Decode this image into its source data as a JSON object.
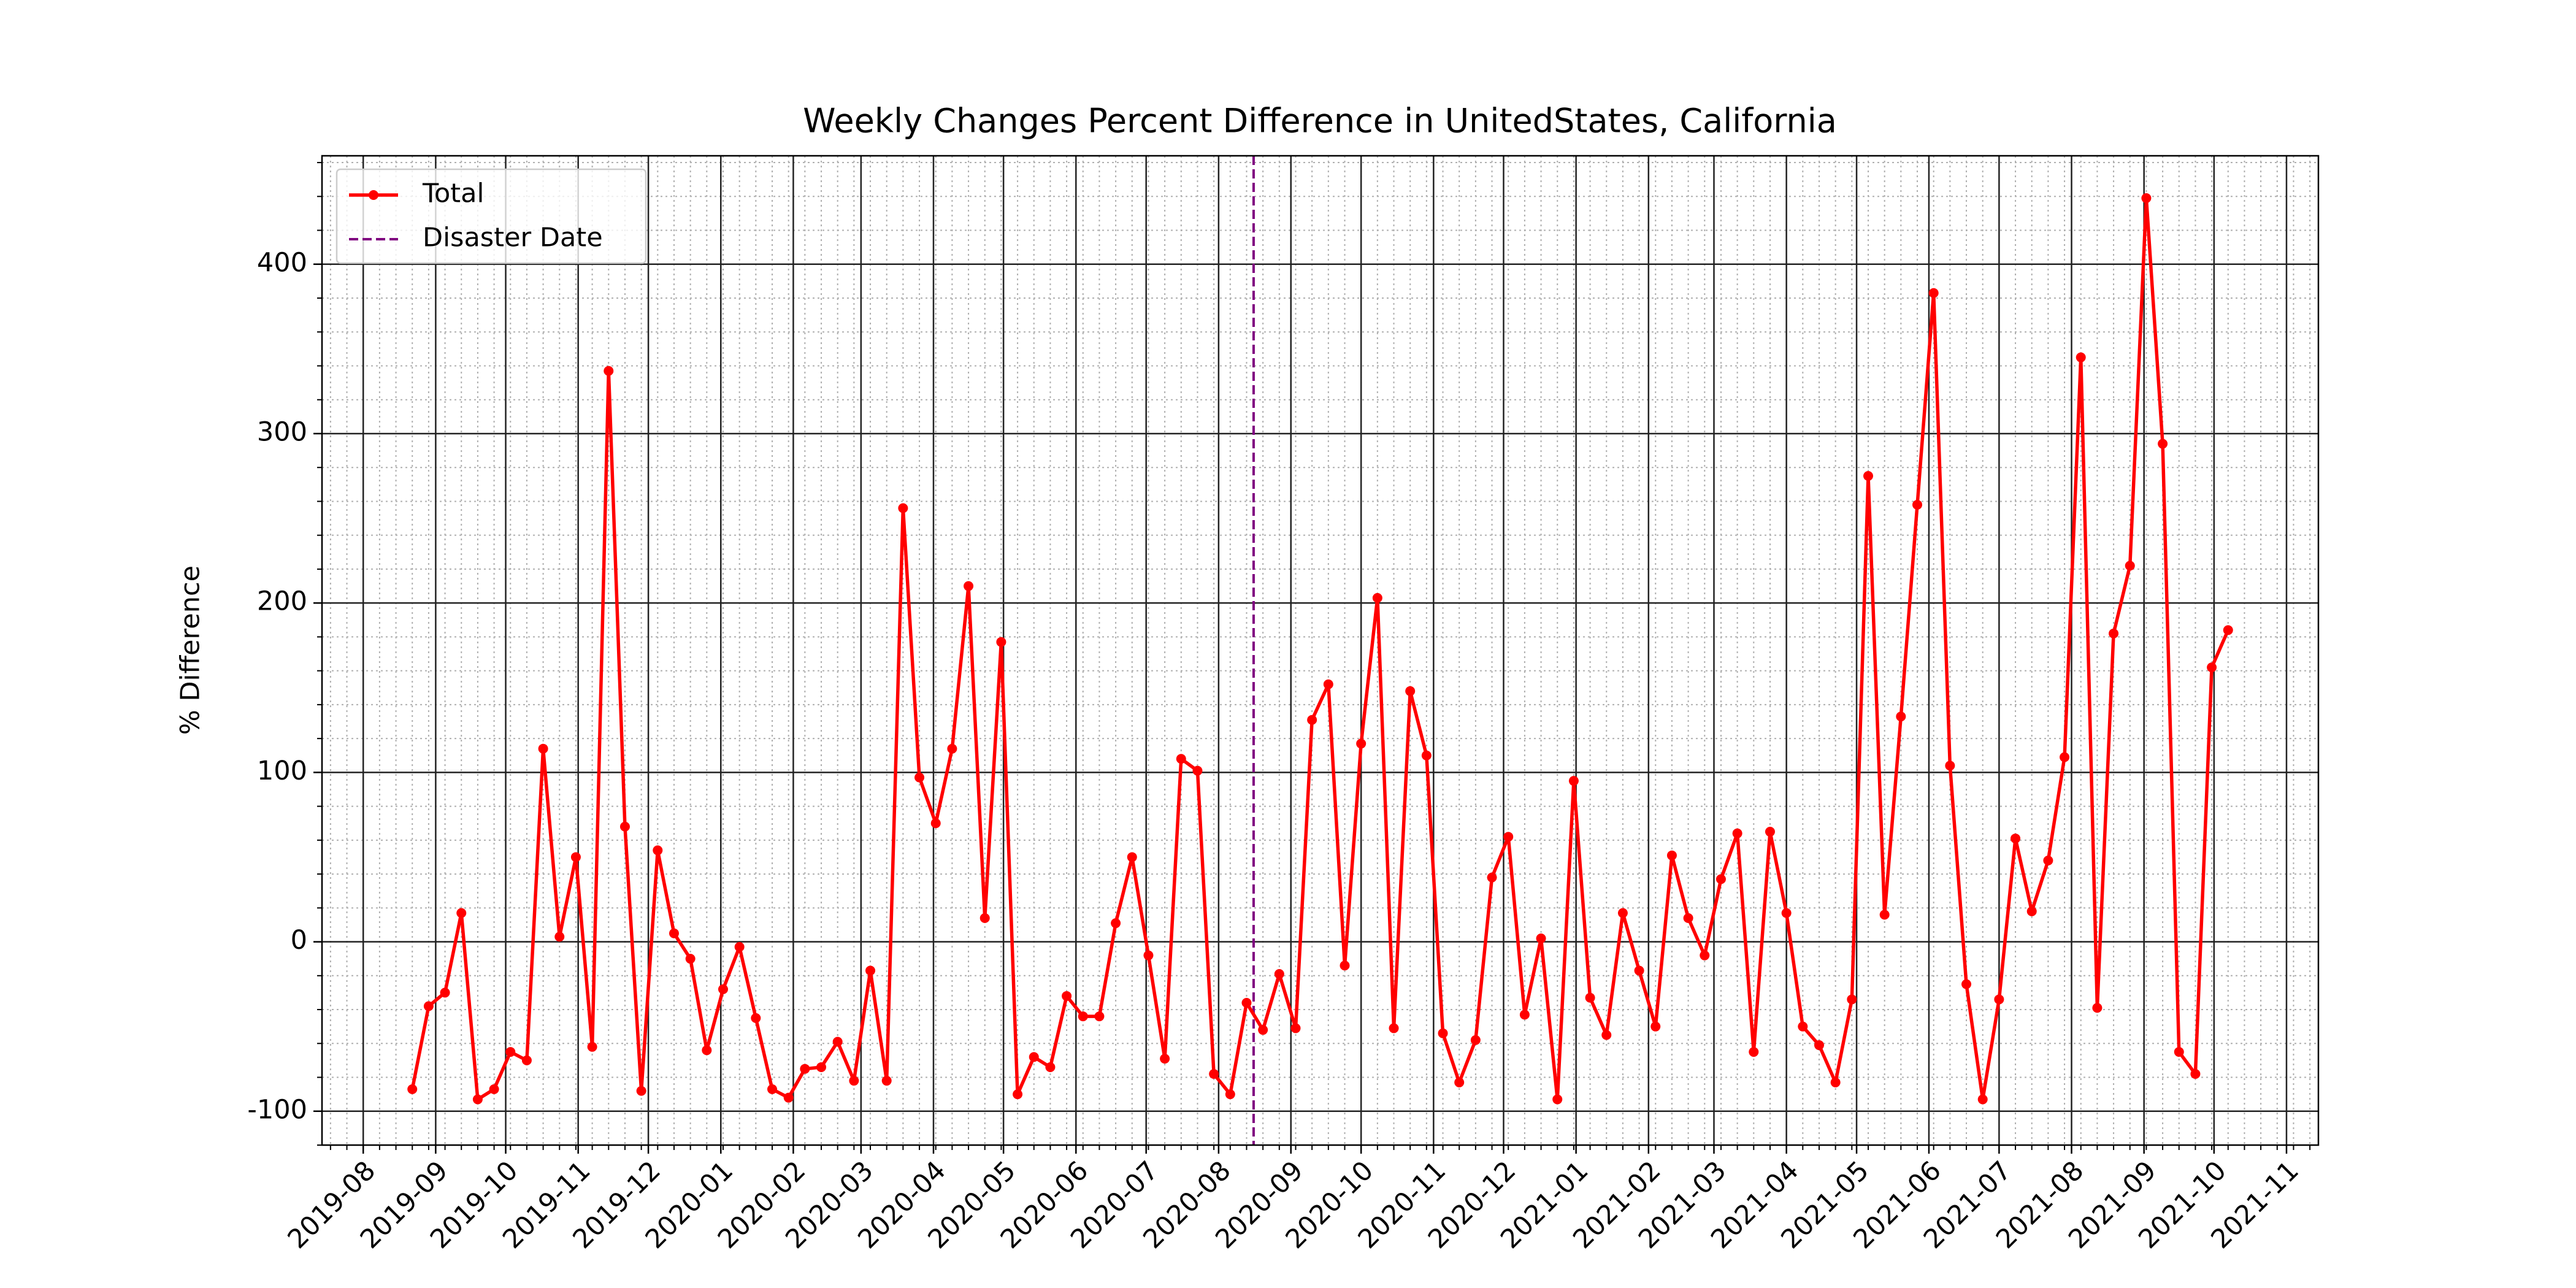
{
  "chart_data": {
    "type": "line",
    "title": "Weekly Changes Percent Difference in UnitedStates, California",
    "y_label": "% Difference",
    "categories": [
      null,
      null,
      null,
      null,
      null,
      null,
      null,
      null,
      null,
      null,
      null,
      null,
      null,
      null,
      null,
      null,
      null,
      null,
      null,
      null,
      null,
      null,
      null,
      null,
      null,
      null,
      null,
      null,
      null,
      null,
      null,
      null,
      null,
      null,
      null,
      null,
      null,
      null,
      null,
      null,
      null,
      null,
      null,
      null,
      null,
      null,
      null,
      null,
      null,
      null,
      null,
      null,
      null,
      null,
      null,
      null,
      null,
      null,
      null,
      null,
      null,
      null,
      null,
      null,
      null,
      null,
      null,
      null,
      null,
      null,
      null,
      null,
      null,
      null,
      null,
      null,
      null,
      null,
      null,
      null,
      null,
      null,
      null,
      null,
      null,
      null,
      null,
      null,
      null,
      null,
      null,
      null,
      null,
      null,
      null,
      null,
      null,
      null,
      null,
      null,
      null,
      null,
      null,
      null,
      null,
      null,
      null,
      null,
      null,
      null,
      null,
      null
    ],
    "series": [
      {
        "name": "Total",
        "color": "#ff0000",
        "values": [
          -87,
          -38,
          -30,
          17,
          -93,
          -87,
          -65,
          -70,
          114,
          3,
          50,
          -62,
          337,
          68,
          -88,
          54,
          5,
          -10,
          -64,
          -28,
          -3,
          -45,
          -87,
          -92,
          -75,
          -74,
          -59,
          -82,
          -17,
          -82,
          256,
          97,
          70,
          114,
          210,
          14,
          177,
          -90,
          -68,
          -74,
          -32,
          -44,
          -44,
          11,
          50,
          -8,
          -69,
          108,
          101,
          -78,
          -90,
          -36,
          -52,
          -19,
          -51,
          131,
          152,
          -14,
          117,
          203,
          -51,
          148,
          110,
          -54,
          -83,
          -58,
          38,
          62,
          -43,
          2,
          -93,
          95,
          -33,
          -55,
          17,
          -17,
          -50,
          51,
          14,
          -8,
          37,
          64,
          -65,
          65,
          17,
          -50,
          -61,
          -83,
          -34,
          275,
          16,
          133,
          258,
          383,
          104,
          -25,
          -93,
          -34,
          61,
          18,
          48,
          109,
          345,
          -39,
          182,
          222,
          439,
          294,
          -65,
          -78,
          162,
          184
        ]
      }
    ],
    "vline": {
      "label": "Disaster Date",
      "x": 51.43,
      "color": "#800080"
    },
    "xlim": [
      -5.52,
      116.52
    ],
    "xticks": [
      {
        "value": -3,
        "label": "2019-08"
      },
      {
        "value": 1.43,
        "label": "2019-09"
      },
      {
        "value": 5.71,
        "label": "2019-10"
      },
      {
        "value": 10.14,
        "label": "2019-11"
      },
      {
        "value": 14.43,
        "label": "2019-12"
      },
      {
        "value": 18.86,
        "label": "2020-01"
      },
      {
        "value": 23.29,
        "label": "2020-02"
      },
      {
        "value": 27.43,
        "label": "2020-03"
      },
      {
        "value": 31.86,
        "label": "2020-04"
      },
      {
        "value": 36.14,
        "label": "2020-05"
      },
      {
        "value": 40.57,
        "label": "2020-06"
      },
      {
        "value": 44.86,
        "label": "2020-07"
      },
      {
        "value": 49.29,
        "label": "2020-08"
      },
      {
        "value": 53.71,
        "label": "2020-09"
      },
      {
        "value": 58,
        "label": "2020-10"
      },
      {
        "value": 62.43,
        "label": "2020-11"
      },
      {
        "value": 66.71,
        "label": "2020-12"
      },
      {
        "value": 71.14,
        "label": "2021-01"
      },
      {
        "value": 75.57,
        "label": "2021-02"
      },
      {
        "value": 79.57,
        "label": "2021-03"
      },
      {
        "value": 84,
        "label": "2021-04"
      },
      {
        "value": 88.29,
        "label": "2021-05"
      },
      {
        "value": 92.71,
        "label": "2021-06"
      },
      {
        "value": 97,
        "label": "2021-07"
      },
      {
        "value": 101.43,
        "label": "2021-08"
      },
      {
        "value": 105.86,
        "label": "2021-09"
      },
      {
        "value": 110.14,
        "label": "2021-10"
      },
      {
        "value": 114.57,
        "label": "2021-11"
      }
    ],
    "ylim": [
      -120,
      464
    ],
    "yticks": [
      -100,
      0,
      100,
      200,
      300,
      400
    ],
    "grid": true,
    "minor_grid": true,
    "legend": "upper left"
  }
}
